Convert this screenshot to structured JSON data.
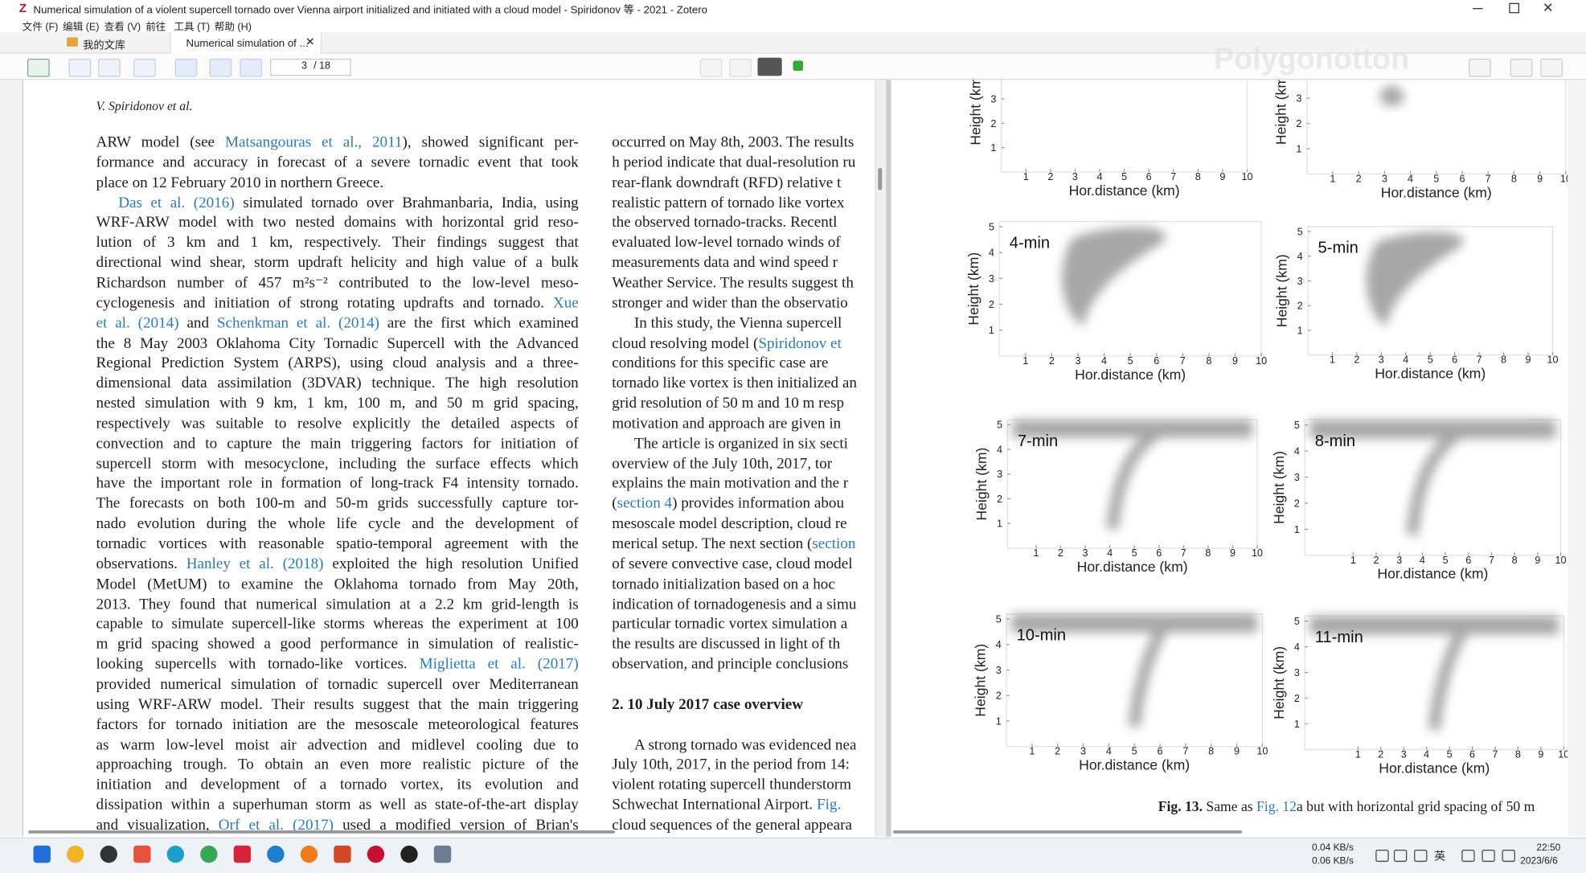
{
  "window": {
    "title": "Numerical simulation of a violent supercell tornado over Vienna airport initialized and initiated with a cloud model - Spiridonov 等 - 2021 - Zotero",
    "menu": [
      "文件 (F)",
      "编辑 (E)",
      "查看 (V)",
      "前往",
      "工具 (T)",
      "帮助 (H)"
    ],
    "tabs": [
      "我的文库",
      "Numerical simulation of ..."
    ],
    "page_number": "3",
    "page_count": "/ 18",
    "watermark": "Polygonotton"
  },
  "document": {
    "running_head": "V. Spiridonov et al.",
    "left_column": {
      "paragraphs": [
        [
          [
            "ARW model (see ",
            {
              "link": "Matsangouras et al., 2011"
            },
            "), showed significant per-"
          ],
          [
            "formance and accuracy in forecast of a severe tornadic event that took"
          ],
          [
            "place on 12 February 2010 in northern Greece."
          ]
        ],
        [
          [
            {
              "link": "Das et al. (2016)"
            },
            " simulated tornado over Brahmanbaria, India, using"
          ],
          [
            "WRF-ARW model with two nested domains with horizontal grid reso-"
          ],
          [
            "lution of 3 km and 1 km, respectively. Their findings suggest that"
          ],
          [
            "directional wind shear, storm updraft helicity and high value of a bulk"
          ],
          [
            "Richardson number of 457 m²s⁻² contributed to the low-level meso-"
          ],
          [
            "cyclogenesis and initiation of strong rotating updrafts and tornado. ",
            {
              "link": "Xue"
            }
          ],
          [
            {
              "link": "et al. (2014)"
            },
            " and ",
            {
              "link": "Schenkman et al. (2014)"
            },
            " are the first which examined"
          ],
          [
            "the 8 May 2003 Oklahoma City Tornadic Supercell with the Advanced"
          ],
          [
            "Regional Prediction System (ARPS), using cloud analysis and a three-"
          ],
          [
            "dimensional data assimilation (3DVAR) technique. The high resolution"
          ],
          [
            "nested simulation with 9 km, 1 km, 100 m, and 50 m grid spacing,"
          ],
          [
            "respectively was suitable to resolve explicitly the detailed aspects of"
          ],
          [
            "convection and to capture the main triggering factors for initiation of"
          ],
          [
            "supercell storm with mesocyclone, including the surface effects which"
          ],
          [
            "have the important role in formation of long-track F4 intensity tornado."
          ],
          [
            "The forecasts on both 100-m and 50-m grids successfully capture tor-"
          ],
          [
            "nado evolution during the whole life cycle and the development of"
          ],
          [
            "tornadic vortices with reasonable spatio-temporal agreement with the"
          ],
          [
            "observations. ",
            {
              "link": "Hanley et al. (2018)"
            },
            " exploited the high resolution Unified"
          ],
          [
            "Model (MetUM) to examine the Oklahoma tornado from May 20th,"
          ],
          [
            "2013. They found that numerical simulation at a 2.2 km grid-length is"
          ],
          [
            "capable to simulate supercell-like storms whereas the experiment at 100"
          ],
          [
            "m grid spacing showed a good performance in simulation of realistic-"
          ],
          [
            "looking supercells with tornado-like vortices. ",
            {
              "link": "Miglietta et al. (2017)"
            }
          ],
          [
            "provided numerical simulation of tornadic supercell over Mediterranean"
          ],
          [
            "using WRF-ARW model. Their results suggest that the main triggering"
          ],
          [
            "factors for tornado initiation are the mesoscale meteorological features"
          ],
          [
            "as warm low-level moist air advection and midlevel cooling due to"
          ],
          [
            "approaching trough. To obtain an even more realistic picture of the"
          ],
          [
            "initiation and development of a tornado vortex, its evolution and"
          ],
          [
            "dissipation within a superhuman storm as well as state-of-the-art display"
          ],
          [
            "and visualization, ",
            {
              "link": "Orf et al. (2017)"
            },
            " used a modified version of Brian's"
          ]
        ]
      ]
    },
    "right_column": {
      "paragraphs": [
        [
          [
            "occurred on May 8th, 2003. The results"
          ],
          [
            "h period indicate that dual-resolution ru"
          ],
          [
            "rear-flank downdraft (RFD) relative t"
          ],
          [
            "realistic pattern of tornado like vortex"
          ],
          [
            "the observed tornado-tracks. Recentl"
          ],
          [
            "evaluated low-level tornado winds of"
          ],
          [
            "measurements data and wind speed r"
          ],
          [
            "Weather Service. The results suggest th"
          ],
          [
            "stronger and wider than the observatio"
          ]
        ],
        [
          [
            "In this study, the Vienna supercell"
          ],
          [
            "cloud resolving model (",
            {
              "link": "Spiridonov et"
            }
          ],
          [
            "conditions for this specific case are"
          ],
          [
            "tornado like vortex is then initialized an"
          ],
          [
            "grid resolution of 50 m and 10 m resp"
          ],
          [
            "motivation and approach are given in"
          ]
        ],
        [
          [
            "The article is organized in six secti"
          ],
          [
            "overview of the July 10th, 2017, tor"
          ],
          [
            "explains the main motivation and the r"
          ],
          [
            "(",
            {
              "link": "section 4"
            },
            ") provides information abou"
          ],
          [
            "mesoscale model description, cloud re"
          ],
          [
            "merical setup. The next section (",
            {
              "link": "section"
            }
          ],
          [
            "of severe convective case, cloud model"
          ],
          [
            "tornado initialization based on a hoc"
          ],
          [
            "indication of tornadogenesis and a simu"
          ],
          [
            "particular tornadic vortex simulation a"
          ],
          [
            "the results are discussed in light of th"
          ],
          [
            "observation, and principle conclusions"
          ]
        ]
      ],
      "heading": "2.  10 July 2017 case overview",
      "paragraphs_after": [
        [
          [
            "A strong tornado was evidenced nea"
          ],
          [
            "July 10th, 2017, in the period from 14:"
          ],
          [
            "violent rotating supercell thunderstorm"
          ],
          [
            "Schwechat International Airport. ",
            {
              "link": "Fig."
            }
          ],
          [
            "cloud sequences of the general appeara"
          ]
        ]
      ]
    }
  },
  "figure": {
    "x_label": "Hor.distance (km)",
    "y_label": "Height (km)",
    "xlim": [
      0,
      10
    ],
    "ylim": [
      0,
      5.2
    ],
    "xticks": [
      1,
      2,
      3,
      4,
      5,
      6,
      7,
      8,
      9,
      10
    ],
    "yticks": [
      1,
      2,
      3,
      4,
      5
    ],
    "panel_labels": [
      "4-min",
      "5-min",
      "7-min",
      "8-min",
      "10-min",
      "11-min"
    ],
    "caption": {
      "label": "Fig. 13.",
      "text": [
        " Same as ",
        {
          "link": "Fig. 12"
        },
        "a but with horizontal grid spacing of 50 m"
      ]
    }
  },
  "taskbar": {
    "net_up": "0.04 KB/s",
    "net_down": "0.06 KB/s",
    "ime": "英",
    "time": "22:50",
    "date": "2023/6/6"
  }
}
